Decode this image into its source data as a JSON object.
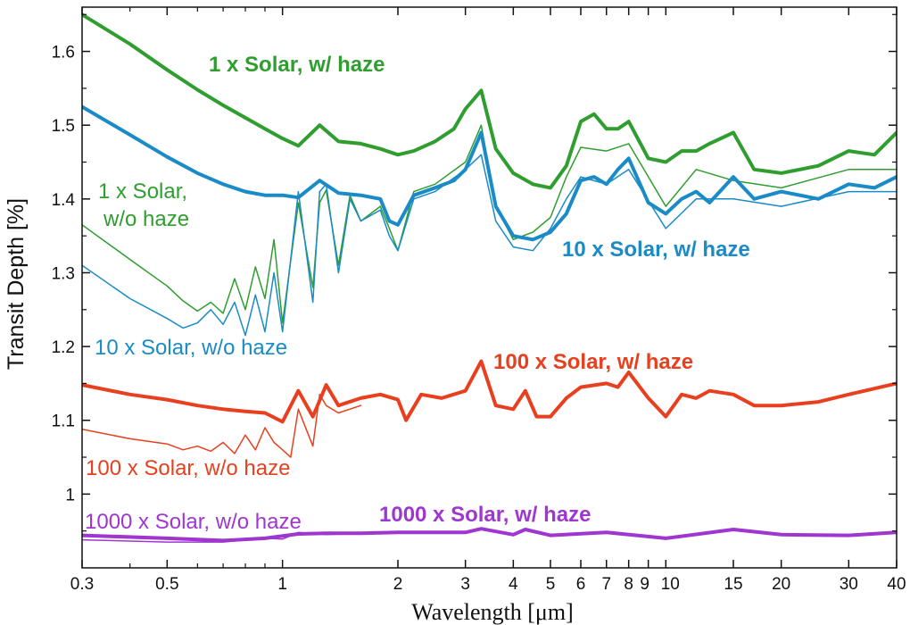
{
  "chart_data": {
    "type": "line",
    "xlabel": "Wavelength [μm]",
    "ylabel": "Transit Depth [%]",
    "xscale": "log",
    "xlim": [
      0.3,
      40
    ],
    "ylim": [
      0.9,
      1.66
    ],
    "xticks": [
      0.3,
      0.5,
      1,
      2,
      3,
      4,
      5,
      6,
      7,
      8,
      9,
      10,
      15,
      20,
      30,
      40
    ],
    "xtick_labels": [
      "0.3",
      "0.5",
      "1",
      "2",
      "3",
      "4",
      "5",
      "6",
      "7",
      "8",
      "9",
      "10",
      "15",
      "20",
      "30",
      "40"
    ],
    "yticks": [
      1.0,
      1.1,
      1.2,
      1.3,
      1.4,
      1.5,
      1.6
    ],
    "ytick_labels": [
      "1",
      "1.1",
      "1.2",
      "1.3",
      "1.4",
      "1.5",
      "1.6"
    ],
    "grid": false,
    "legend": "inline labels",
    "series": [
      {
        "name": "1 x Solar, w/ haze",
        "color": "#2f9e2f",
        "style": "thick",
        "x": [
          0.3,
          0.4,
          0.5,
          0.6,
          0.7,
          0.8,
          0.9,
          1.0,
          1.1,
          1.25,
          1.4,
          1.6,
          1.8,
          2.0,
          2.2,
          2.5,
          2.8,
          3.0,
          3.3,
          3.6,
          4.0,
          4.5,
          5.0,
          5.5,
          6.0,
          6.5,
          7.0,
          7.5,
          8.0,
          9.0,
          10.0,
          11.0,
          12.0,
          13.0,
          15.0,
          17.0,
          20.0,
          25.0,
          30.0,
          35.0,
          40.0
        ],
        "y": [
          1.65,
          1.61,
          1.575,
          1.548,
          1.527,
          1.51,
          1.495,
          1.482,
          1.472,
          1.5,
          1.478,
          1.475,
          1.468,
          1.46,
          1.465,
          1.478,
          1.495,
          1.522,
          1.547,
          1.468,
          1.435,
          1.42,
          1.415,
          1.445,
          1.505,
          1.515,
          1.495,
          1.495,
          1.505,
          1.455,
          1.45,
          1.465,
          1.465,
          1.475,
          1.49,
          1.44,
          1.435,
          1.445,
          1.465,
          1.46,
          1.49
        ]
      },
      {
        "name": "1 x Solar, w/o haze",
        "color": "#2f9e2f",
        "style": "thin",
        "x": [
          0.3,
          0.4,
          0.5,
          0.55,
          0.6,
          0.65,
          0.7,
          0.75,
          0.8,
          0.85,
          0.9,
          0.95,
          1.0,
          1.1,
          1.2,
          1.25,
          1.3,
          1.4,
          1.5,
          1.6,
          1.8,
          1.9,
          2.0,
          2.2,
          2.5,
          3.0,
          3.3,
          3.6,
          4.0,
          4.5,
          5.0,
          5.5,
          6.0,
          7.0,
          8.0,
          10.0,
          12.0,
          15.0,
          20.0,
          30.0,
          40.0
        ],
        "y": [
          1.365,
          1.318,
          1.282,
          1.262,
          1.248,
          1.26,
          1.245,
          1.292,
          1.25,
          1.308,
          1.265,
          1.345,
          1.232,
          1.395,
          1.28,
          1.395,
          1.412,
          1.31,
          1.405,
          1.37,
          1.39,
          1.36,
          1.33,
          1.41,
          1.42,
          1.45,
          1.5,
          1.39,
          1.345,
          1.355,
          1.375,
          1.43,
          1.47,
          1.465,
          1.475,
          1.39,
          1.44,
          1.425,
          1.415,
          1.44,
          1.44
        ]
      },
      {
        "name": "10 x Solar, w/ haze",
        "color": "#1a8bc6",
        "style": "thick",
        "x": [
          0.3,
          0.4,
          0.5,
          0.6,
          0.7,
          0.8,
          0.9,
          1.0,
          1.1,
          1.25,
          1.4,
          1.6,
          1.8,
          1.9,
          2.0,
          2.2,
          2.5,
          2.8,
          3.0,
          3.3,
          3.6,
          4.0,
          4.5,
          5.0,
          5.5,
          6.0,
          6.5,
          7.0,
          7.5,
          8.0,
          9.0,
          10.0,
          11.0,
          12.0,
          13.0,
          15.0,
          17.0,
          20.0,
          25.0,
          30.0,
          35.0,
          40.0
        ],
        "y": [
          1.525,
          1.487,
          1.457,
          1.435,
          1.42,
          1.41,
          1.405,
          1.405,
          1.402,
          1.425,
          1.408,
          1.405,
          1.4,
          1.37,
          1.365,
          1.405,
          1.415,
          1.425,
          1.44,
          1.49,
          1.39,
          1.35,
          1.345,
          1.355,
          1.38,
          1.425,
          1.43,
          1.42,
          1.44,
          1.455,
          1.395,
          1.38,
          1.4,
          1.41,
          1.395,
          1.43,
          1.4,
          1.41,
          1.4,
          1.42,
          1.415,
          1.43
        ]
      },
      {
        "name": "10 x Solar, w/o haze",
        "color": "#1a8bc6",
        "style": "thin",
        "x": [
          0.3,
          0.4,
          0.5,
          0.55,
          0.6,
          0.65,
          0.7,
          0.75,
          0.8,
          0.85,
          0.9,
          0.95,
          1.0,
          1.1,
          1.2,
          1.25,
          1.3,
          1.4,
          1.5,
          1.6,
          1.8,
          1.9,
          2.0,
          2.2,
          2.5,
          3.0,
          3.3,
          3.6,
          4.0,
          4.5,
          5.0,
          5.5,
          6.0,
          7.0,
          8.0,
          10.0,
          12.0,
          15.0,
          20.0,
          30.0,
          40.0
        ],
        "y": [
          1.31,
          1.265,
          1.238,
          1.225,
          1.232,
          1.25,
          1.23,
          1.26,
          1.215,
          1.27,
          1.22,
          1.3,
          1.22,
          1.41,
          1.26,
          1.41,
          1.42,
          1.3,
          1.4,
          1.37,
          1.385,
          1.35,
          1.33,
          1.4,
          1.41,
          1.44,
          1.46,
          1.37,
          1.335,
          1.33,
          1.36,
          1.4,
          1.43,
          1.42,
          1.44,
          1.36,
          1.4,
          1.4,
          1.39,
          1.41,
          1.41
        ]
      },
      {
        "name": "100 x Solar, w/ haze",
        "color": "#e8401f",
        "style": "thick",
        "x": [
          0.3,
          0.4,
          0.5,
          0.6,
          0.7,
          0.8,
          0.9,
          1.0,
          1.1,
          1.2,
          1.3,
          1.4,
          1.6,
          1.8,
          2.0,
          2.1,
          2.3,
          2.6,
          3.0,
          3.3,
          3.6,
          4.0,
          4.3,
          4.6,
          5.0,
          5.5,
          6.0,
          7.0,
          7.5,
          8.0,
          9.0,
          10.0,
          11.0,
          12.0,
          13.0,
          15.0,
          17.0,
          20.0,
          25.0,
          30.0,
          40.0
        ],
        "y": [
          1.148,
          1.135,
          1.128,
          1.12,
          1.115,
          1.112,
          1.11,
          1.098,
          1.14,
          1.105,
          1.148,
          1.12,
          1.13,
          1.135,
          1.128,
          1.1,
          1.135,
          1.13,
          1.14,
          1.18,
          1.12,
          1.115,
          1.14,
          1.105,
          1.105,
          1.13,
          1.145,
          1.15,
          1.145,
          1.165,
          1.13,
          1.105,
          1.135,
          1.13,
          1.14,
          1.135,
          1.12,
          1.12,
          1.125,
          1.135,
          1.15
        ]
      },
      {
        "name": "100 x Solar, w/o haze",
        "color": "#e8401f",
        "style": "thin",
        "x": [
          0.3,
          0.4,
          0.5,
          0.55,
          0.6,
          0.65,
          0.7,
          0.75,
          0.8,
          0.85,
          0.9,
          0.95,
          1.0,
          1.05,
          1.1,
          1.2,
          1.25,
          1.3,
          1.4,
          1.6
        ],
        "y": [
          1.088,
          1.075,
          1.068,
          1.06,
          1.065,
          1.058,
          1.07,
          1.055,
          1.08,
          1.06,
          1.09,
          1.07,
          1.06,
          1.05,
          1.115,
          1.065,
          1.135,
          1.12,
          1.11,
          1.12
        ]
      },
      {
        "name": "1000 x Solar, w/ haze",
        "color": "#a036d0",
        "style": "thick",
        "x": [
          0.3,
          0.5,
          0.7,
          0.9,
          1.1,
          1.3,
          1.6,
          2.0,
          3.0,
          3.3,
          4.0,
          4.3,
          5.0,
          7.0,
          10.0,
          15.0,
          20.0,
          30.0,
          40.0
        ],
        "y": [
          0.944,
          0.94,
          0.937,
          0.94,
          0.946,
          0.947,
          0.947,
          0.948,
          0.948,
          0.953,
          0.945,
          0.952,
          0.944,
          0.948,
          0.94,
          0.952,
          0.945,
          0.944,
          0.948
        ]
      },
      {
        "name": "1000 x Solar, w/o haze",
        "color": "#a036d0",
        "style": "thin",
        "x": [
          0.3,
          0.5,
          0.7,
          0.9,
          1.0,
          1.1,
          1.3,
          1.6
        ],
        "y": [
          0.938,
          0.935,
          0.935,
          0.94,
          0.939,
          0.948,
          0.945,
          0.947
        ]
      }
    ],
    "annotations": [
      {
        "text": "1 x Solar, w/ haze",
        "color": "#2f9e2f",
        "bold": true
      },
      {
        "text": "1 x Solar,",
        "color": "#2f9e2f",
        "bold": false
      },
      {
        "text": "w/o haze",
        "color": "#2f9e2f",
        "bold": false
      },
      {
        "text": "10 x Solar, w/ haze",
        "color": "#1a8bc6",
        "bold": true
      },
      {
        "text": "10 x Solar, w/o haze",
        "color": "#1a8bc6",
        "bold": false
      },
      {
        "text": "100 x Solar, w/ haze",
        "color": "#e8401f",
        "bold": true
      },
      {
        "text": "100 x Solar, w/o haze",
        "color": "#e8401f",
        "bold": false
      },
      {
        "text": "1000 x Solar, w/o haze",
        "color": "#a036d0",
        "bold": false
      },
      {
        "text": "1000 x Solar, w/ haze",
        "color": "#a036d0",
        "bold": true
      }
    ]
  }
}
